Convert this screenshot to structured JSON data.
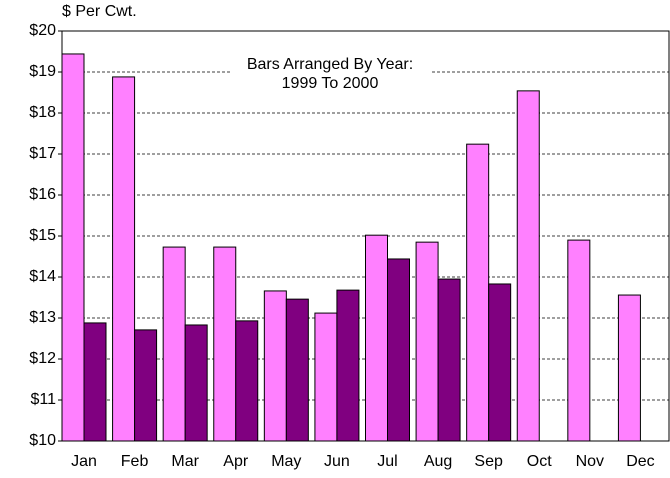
{
  "chart_data": {
    "type": "bar",
    "y_axis_label": "$ Per Cwt.",
    "annotations": [
      "Bars Arranged By Year:",
      "1999 To 2000"
    ],
    "categories": [
      "Jan",
      "Feb",
      "Mar",
      "Apr",
      "May",
      "Jun",
      "Jul",
      "Aug",
      "Sep",
      "Oct",
      "Nov",
      "Dec"
    ],
    "series": [
      {
        "color": "#ff80ff",
        "values": [
          19.44,
          18.88,
          14.73,
          14.73,
          13.66,
          13.12,
          15.02,
          14.85,
          17.24,
          18.54,
          14.9,
          13.56
        ]
      },
      {
        "color": "#800080",
        "values": [
          12.88,
          12.71,
          12.83,
          12.93,
          13.46,
          13.68,
          14.44,
          13.95,
          13.83,
          null,
          null,
          null
        ]
      }
    ],
    "ylim": [
      10,
      20
    ],
    "yticks": [
      {
        "value": 10,
        "label": "$10"
      },
      {
        "value": 11,
        "label": "$11"
      },
      {
        "value": 12,
        "label": "$12"
      },
      {
        "value": 13,
        "label": "$13"
      },
      {
        "value": 14,
        "label": "$14"
      },
      {
        "value": 15,
        "label": "$15"
      },
      {
        "value": 16,
        "label": "$16"
      },
      {
        "value": 17,
        "label": "$17"
      },
      {
        "value": 18,
        "label": "$18"
      },
      {
        "value": 19,
        "label": "$19"
      },
      {
        "value": 20,
        "label": "$20"
      }
    ],
    "grid": true
  }
}
